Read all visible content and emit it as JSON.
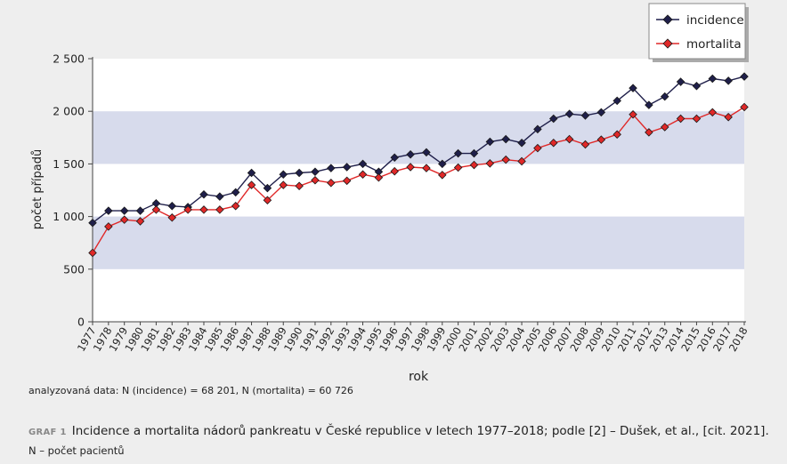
{
  "chart_data": {
    "type": "line",
    "xlabel": "rok",
    "ylabel": "počet případů",
    "ylim": [
      0,
      2500
    ],
    "yticks": [
      0,
      500,
      1000,
      1500,
      2000,
      2500
    ],
    "ytick_labels": [
      "0",
      "500",
      "1 000",
      "1 500",
      "2 000",
      "2 500"
    ],
    "grid": "alternating horizontal bands",
    "legend_position": "top-right",
    "x": [
      "1977",
      "1978",
      "1979",
      "1980",
      "1981",
      "1982",
      "1983",
      "1984",
      "1985",
      "1986",
      "1987",
      "1988",
      "1989",
      "1990",
      "1991",
      "1992",
      "1993",
      "1994",
      "1995",
      "1996",
      "1997",
      "1998",
      "1999",
      "2000",
      "2001",
      "2002",
      "2003",
      "2004",
      "2005",
      "2006",
      "2007",
      "2008",
      "2009",
      "2010",
      "2011",
      "2012",
      "2013",
      "2014",
      "2015",
      "2016",
      "2017",
      "2018"
    ],
    "series": [
      {
        "name": "incidence",
        "color": "#1f1f4a",
        "values": [
          940,
          1055,
          1055,
          1055,
          1125,
          1100,
          1090,
          1210,
          1190,
          1230,
          1415,
          1270,
          1400,
          1415,
          1425,
          1460,
          1470,
          1500,
          1425,
          1560,
          1590,
          1610,
          1500,
          1600,
          1600,
          1710,
          1735,
          1700,
          1830,
          1930,
          1975,
          1960,
          1990,
          2100,
          2220,
          2060,
          2140,
          2280,
          2240,
          2310,
          2290,
          2330
        ]
      },
      {
        "name": "mortalita",
        "color": "#e02828",
        "values": [
          655,
          905,
          970,
          955,
          1065,
          990,
          1065,
          1065,
          1065,
          1100,
          1300,
          1155,
          1300,
          1290,
          1345,
          1320,
          1340,
          1400,
          1370,
          1430,
          1470,
          1460,
          1395,
          1465,
          1490,
          1505,
          1540,
          1525,
          1650,
          1700,
          1735,
          1685,
          1730,
          1780,
          1970,
          1800,
          1850,
          1930,
          1930,
          1990,
          1945,
          2040
        ]
      }
    ]
  },
  "analysis_note": "analyzovaná data: N (incidence) = 68 201, N (mortalita) = 60 726",
  "caption": {
    "tag": "GRAF 1",
    "text": "Incidence a mortalita nádorů pankreatu v České republice v letech 1977–2018; podle [2] – Dušek, et al., [cit. 2021].",
    "line2": "N – počet pacientů"
  }
}
